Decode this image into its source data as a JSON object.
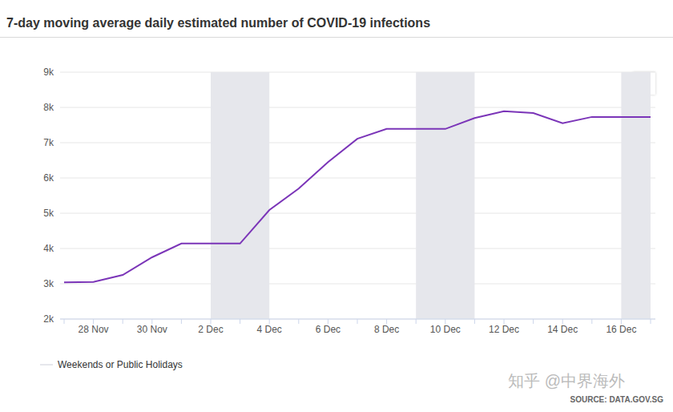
{
  "chart_data": {
    "type": "line",
    "title": "7-day moving average daily estimated number of COVID-19 infections",
    "categories": [
      null,
      "28 Nov",
      null,
      "30 Nov",
      null,
      "2 Dec",
      null,
      "4 Dec",
      null,
      "6 Dec",
      null,
      "8 Dec",
      null,
      "10 Dec",
      null,
      "12 Dec",
      null,
      "14 Dec",
      null,
      "16 Dec",
      null
    ],
    "values": [
      3040,
      3050,
      3250,
      3750,
      4140,
      4140,
      4140,
      5090,
      5700,
      6450,
      7110,
      7390,
      7390,
      7390,
      7700,
      7890,
      7840,
      7550,
      7730,
      7730,
      7730
    ],
    "color": "#7b35b8",
    "ylim": [
      2000,
      9000
    ],
    "yticks": [
      {
        "value": 2000,
        "label": "2k"
      },
      {
        "value": 3000,
        "label": "3k"
      },
      {
        "value": 4000,
        "label": "4k"
      },
      {
        "value": 5000,
        "label": "5k"
      },
      {
        "value": 6000,
        "label": "6k"
      },
      {
        "value": 7000,
        "label": "7k"
      },
      {
        "value": 8000,
        "label": "8k"
      },
      {
        "value": 9000,
        "label": "9k"
      }
    ],
    "grid": true,
    "shaded_regions": [
      [
        5,
        7
      ],
      [
        12,
        14
      ],
      [
        19,
        20
      ]
    ],
    "shaded_label": "Weekends or Public Holidays",
    "source": "SOURCE: DATA.GOV.SG",
    "watermark": "知乎 @中界海外"
  }
}
